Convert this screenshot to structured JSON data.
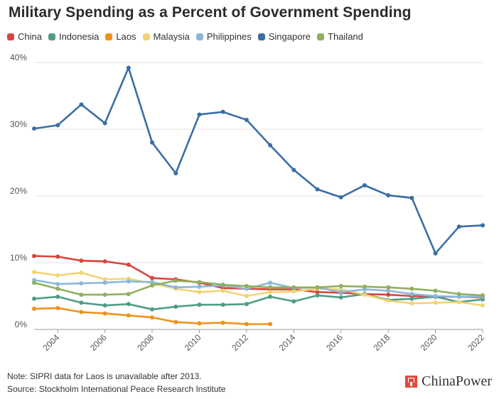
{
  "chart_data": {
    "type": "line",
    "title": "Military Spending as a Percent of Government Spending",
    "x": [
      2003,
      2004,
      2005,
      2006,
      2007,
      2008,
      2009,
      2010,
      2011,
      2012,
      2013,
      2014,
      2015,
      2016,
      2017,
      2018,
      2019,
      2020,
      2021,
      2022
    ],
    "x_tick_labels": [
      "2004",
      "2006",
      "2008",
      "2010",
      "2012",
      "2014",
      "2016",
      "2018",
      "2020",
      "2022"
    ],
    "y_tick_labels": [
      "0%",
      "10%",
      "20%",
      "30%",
      "40%"
    ],
    "ylim": [
      0,
      40
    ],
    "grid": true,
    "legend_position": "top",
    "series": [
      {
        "name": "China",
        "color": "#d9453d",
        "values": [
          11.0,
          10.9,
          10.3,
          10.2,
          9.7,
          7.7,
          7.5,
          7.0,
          6.2,
          6.1,
          6.0,
          6.0,
          5.6,
          5.5,
          5.3,
          5.2,
          5.0,
          4.9,
          4.9,
          4.8
        ]
      },
      {
        "name": "Indonesia",
        "color": "#4e9e87",
        "values": [
          4.6,
          4.9,
          4.0,
          3.6,
          3.8,
          3.0,
          3.4,
          3.7,
          3.7,
          3.8,
          4.9,
          4.2,
          5.1,
          4.8,
          5.3,
          4.4,
          4.6,
          4.9,
          4.1,
          4.5
        ]
      },
      {
        "name": "Laos",
        "color": "#ee921b",
        "values": [
          3.1,
          3.2,
          2.6,
          2.4,
          2.1,
          1.8,
          1.1,
          0.9,
          1.0,
          0.8,
          0.8,
          null,
          null,
          null,
          null,
          null,
          null,
          null,
          null,
          null
        ]
      },
      {
        "name": "Malaysia",
        "color": "#f1d470",
        "values": [
          8.6,
          8.1,
          8.5,
          7.5,
          7.6,
          6.9,
          6.1,
          5.6,
          5.8,
          5.0,
          5.6,
          5.7,
          6.1,
          6.0,
          5.2,
          4.3,
          3.9,
          4.0,
          4.1,
          3.6
        ]
      },
      {
        "name": "Philippines",
        "color": "#8bb8da",
        "values": [
          7.4,
          6.8,
          6.9,
          7.0,
          7.2,
          7.1,
          6.3,
          6.4,
          6.6,
          6.1,
          7.0,
          6.2,
          6.3,
          5.6,
          6.0,
          5.8,
          5.3,
          5.0,
          4.9,
          4.9
        ]
      },
      {
        "name": "Singapore",
        "color": "#3a6ea5",
        "values": [
          30.1,
          30.6,
          33.7,
          30.9,
          39.2,
          28.0,
          23.4,
          32.2,
          32.6,
          31.4,
          27.6,
          23.9,
          21.0,
          19.8,
          21.6,
          20.1,
          19.7,
          11.4,
          15.4,
          15.6
        ]
      },
      {
        "name": "Thailand",
        "color": "#8fb05c",
        "values": [
          7.0,
          6.1,
          5.2,
          5.2,
          5.3,
          6.6,
          7.3,
          7.1,
          6.7,
          6.5,
          6.3,
          6.3,
          6.3,
          6.5,
          6.4,
          6.3,
          6.1,
          5.8,
          5.3,
          5.1
        ]
      }
    ]
  },
  "footer": {
    "note": "Note: SIPRI data for Laos is unavailable after 2013.",
    "source": "Source: Stockholm International Peace Research Institute"
  },
  "brand": {
    "name": "ChinaPower",
    "icon": "chinapower-logo-icon"
  }
}
